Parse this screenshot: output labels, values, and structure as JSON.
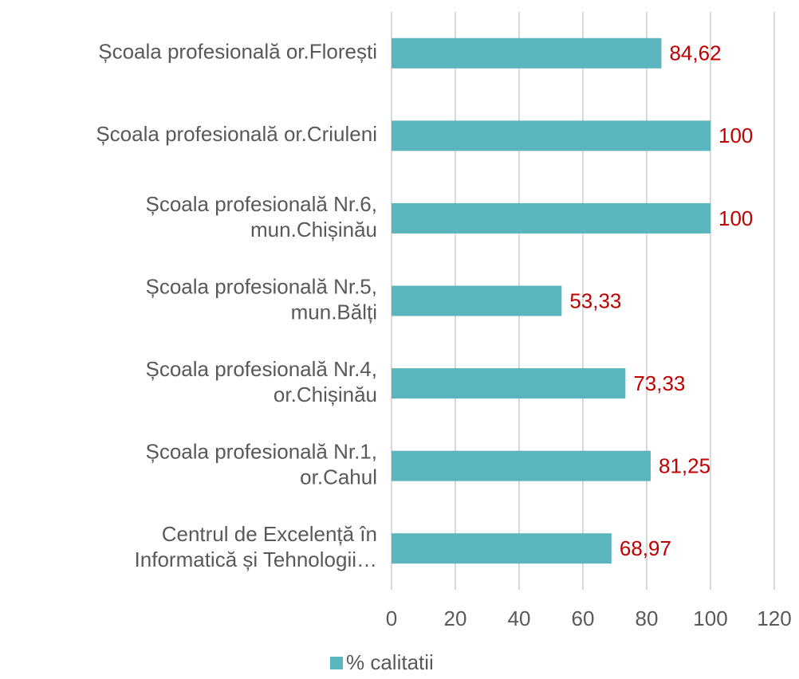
{
  "chart_data": {
    "type": "bar",
    "orientation": "horizontal",
    "categories": [
      "Școala profesională or.Florești",
      "Școala profesională  or.Criuleni",
      "Școala profesională Nr.6,\nmun.Chișinău",
      "Școala profesională Nr.5,\nmun.Bălți",
      "Școala profesională Nr.4,\nor.Chișinău",
      "Școala profesională Nr.1,\nor.Cahul",
      "Centrul de Excelență în\nInformatică și Tehnologii…"
    ],
    "series": [
      {
        "name": "% calitatii",
        "color": "#5bb5be",
        "values": [
          84.62,
          100,
          100,
          53.33,
          73.33,
          81.25,
          68.97
        ],
        "value_labels": [
          "84,62",
          "100",
          "100",
          "53,33",
          "73,33",
          "81,25",
          "68,97"
        ]
      }
    ],
    "xlim": [
      0,
      120
    ],
    "xticks": [
      0,
      20,
      40,
      60,
      80,
      100,
      120
    ],
    "grid": true,
    "legend": "bottom"
  }
}
